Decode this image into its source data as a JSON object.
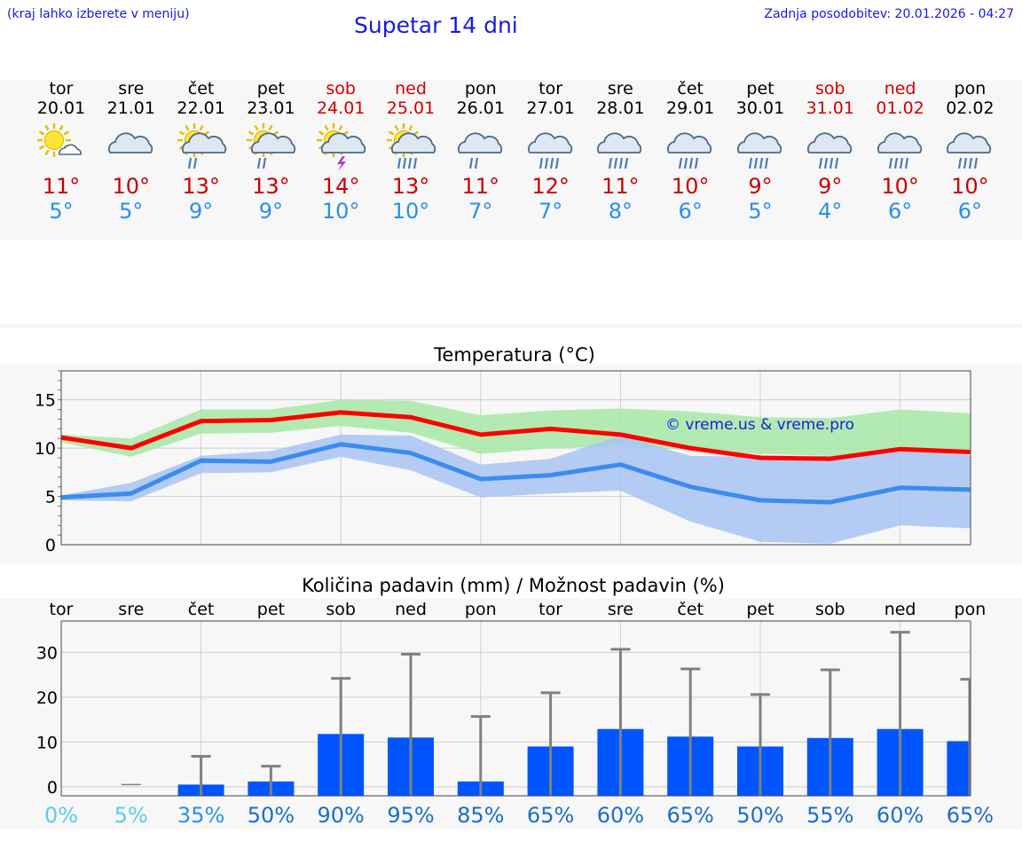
{
  "header": {
    "hint": "(kraj lahko izberete v meniju)",
    "title": "Supetar 14 dni",
    "updated": "Zadnja posodobitev: 20.01.2026 - 04:27"
  },
  "days": [
    {
      "name": "tor",
      "date": "20.01",
      "icon": "partly-cloudy-icon",
      "max": "11°",
      "min": "5°",
      "weekend": false
    },
    {
      "name": "sre",
      "date": "21.01",
      "icon": "cloudy-icon",
      "max": "10°",
      "min": "5°",
      "weekend": false
    },
    {
      "name": "čet",
      "date": "22.01",
      "icon": "sun-cloud-rain-icon",
      "max": "13°",
      "min": "9°",
      "weekend": false
    },
    {
      "name": "pet",
      "date": "23.01",
      "icon": "sun-cloud-rain-icon",
      "max": "13°",
      "min": "9°",
      "weekend": false
    },
    {
      "name": "sob",
      "date": "24.01",
      "icon": "sun-cloud-thunder-icon",
      "max": "14°",
      "min": "10°",
      "weekend": true
    },
    {
      "name": "ned",
      "date": "25.01",
      "icon": "sun-cloud-heavy-rain-icon",
      "max": "13°",
      "min": "10°",
      "weekend": true
    },
    {
      "name": "pon",
      "date": "26.01",
      "icon": "cloud-rain-icon",
      "max": "11°",
      "min": "7°",
      "weekend": false
    },
    {
      "name": "tor",
      "date": "27.01",
      "icon": "cloud-heavy-rain-icon",
      "max": "12°",
      "min": "7°",
      "weekend": false
    },
    {
      "name": "sre",
      "date": "28.01",
      "icon": "cloud-heavy-rain-icon",
      "max": "11°",
      "min": "8°",
      "weekend": false
    },
    {
      "name": "čet",
      "date": "29.01",
      "icon": "cloud-heavy-rain-icon",
      "max": "10°",
      "min": "6°",
      "weekend": false
    },
    {
      "name": "pet",
      "date": "30.01",
      "icon": "cloud-heavy-rain-icon",
      "max": "9°",
      "min": "5°",
      "weekend": false
    },
    {
      "name": "sob",
      "date": "31.01",
      "icon": "cloud-heavy-rain-icon",
      "max": "9°",
      "min": "4°",
      "weekend": true
    },
    {
      "name": "ned",
      "date": "01.02",
      "icon": "cloud-heavy-rain-icon",
      "max": "10°",
      "min": "6°",
      "weekend": true
    },
    {
      "name": "pon",
      "date": "02.02",
      "icon": "cloud-heavy-rain-icon",
      "max": "10°",
      "min": "6°",
      "weekend": false
    }
  ],
  "colors": {
    "max": "#ff0000",
    "min": "#3b8cf0",
    "maxBand": "#a6e8a6",
    "minBand": "#a8c4f2",
    "overlap": "#7ac4a6",
    "bar": "#0055ff",
    "whisker": "#808080",
    "weekend": "#d00000"
  },
  "chart_data": [
    {
      "type": "line",
      "title": "Temperatura (°C)",
      "watermark": "© vreme.us & vreme.pro",
      "ylim": [
        0,
        18
      ],
      "yticks": [
        0,
        5,
        10,
        15
      ],
      "x": [
        0,
        1,
        2,
        3,
        4,
        5,
        6,
        7,
        8,
        9,
        10,
        11,
        12,
        13
      ],
      "series": [
        {
          "name": "max",
          "values": [
            11.1,
            10,
            12.8,
            12.9,
            13.7,
            13.2,
            11.4,
            12,
            11.4,
            10,
            9,
            8.9,
            9.9,
            9.6
          ],
          "band_low": [
            10.6,
            9.1,
            11.5,
            11.6,
            12.3,
            11.6,
            9.4,
            10,
            10.2,
            9.8,
            9.4,
            9.2,
            9.4,
            9.4
          ],
          "band_high": [
            11.4,
            11,
            14,
            14,
            15,
            14.9,
            13.4,
            13.9,
            14.1,
            13.8,
            13.2,
            13.1,
            14,
            13.6
          ]
        },
        {
          "name": "min",
          "values": [
            4.9,
            5.3,
            8.7,
            8.6,
            10.4,
            9.5,
            6.8,
            7.2,
            8.3,
            6,
            4.6,
            4.4,
            5.9,
            5.7
          ],
          "band_low": [
            4.6,
            4.5,
            7.4,
            7.5,
            9.1,
            7.7,
            4.9,
            5.3,
            5.6,
            2.4,
            0.3,
            0.1,
            2,
            1.7
          ],
          "band_high": [
            5.1,
            6.4,
            9.2,
            9.7,
            11.4,
            11.3,
            8.3,
            8.9,
            11.3,
            9.2,
            9.1,
            9.2,
            9.7,
            9.3
          ]
        }
      ]
    },
    {
      "type": "bar",
      "title": "Količina padavin (mm) / Možnost padavin (%)",
      "ylim": [
        -2,
        37
      ],
      "yticks": [
        0,
        10,
        20,
        30
      ],
      "categories": [
        "tor",
        "sre",
        "čet",
        "pet",
        "sob",
        "ned",
        "pon",
        "tor",
        "sre",
        "čet",
        "pet",
        "sob",
        "ned",
        "pon"
      ],
      "values": [
        0,
        0,
        0.5,
        1.2,
        11.8,
        11,
        1.2,
        9,
        12.9,
        11.2,
        9,
        10.9,
        12.9,
        10.2
      ],
      "max_values": [
        0,
        0,
        6.8,
        4.6,
        24.2,
        29.6,
        15.7,
        21,
        30.7,
        26.3,
        20.6,
        26.1,
        34.5,
        24
      ],
      "probability": [
        "0%",
        "5%",
        "35%",
        "50%",
        "90%",
        "95%",
        "85%",
        "65%",
        "60%",
        "65%",
        "50%",
        "55%",
        "60%",
        "65%"
      ],
      "probability_colors": [
        "#55d0e8",
        "#55d0e8",
        "#2b8fe8",
        "#1a6fc8",
        "#1a6fc8",
        "#1a6fc8",
        "#1a6fc8",
        "#1a6fc8",
        "#1a6fc8",
        "#1a6fc8",
        "#1a6fc8",
        "#1a6fc8",
        "#1a6fc8",
        "#1a6fc8"
      ]
    }
  ]
}
